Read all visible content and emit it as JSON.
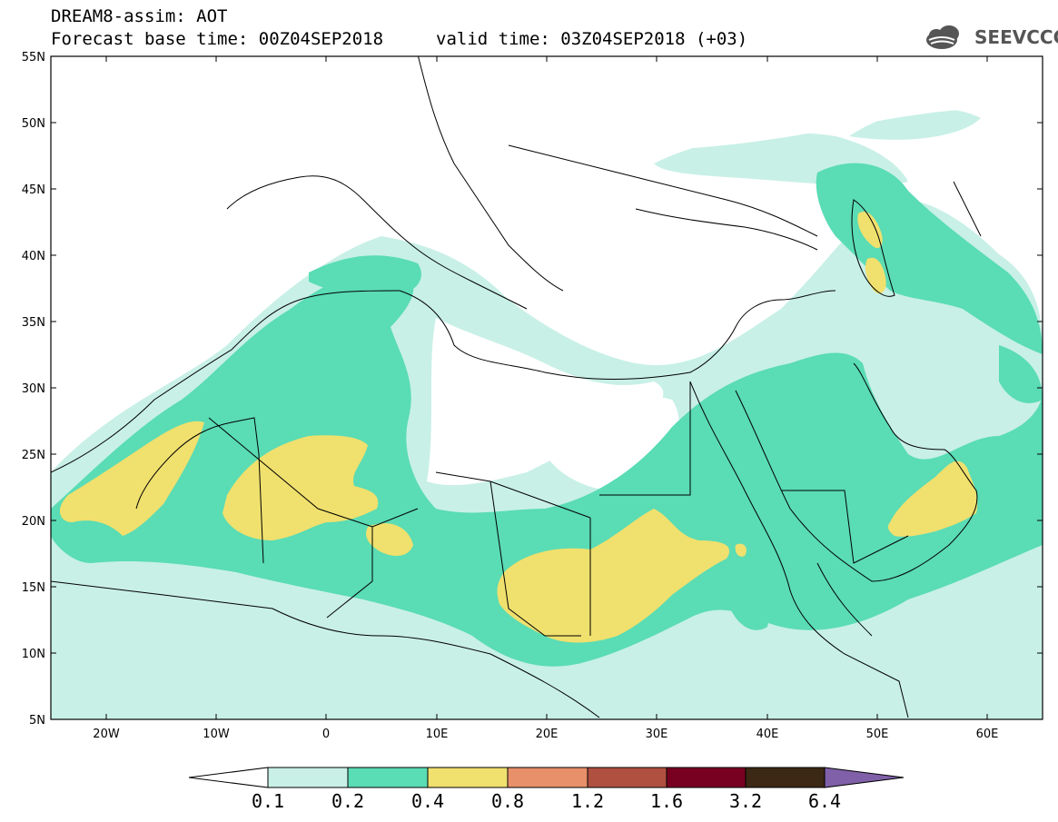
{
  "header": {
    "title": "DREAM8-assim: AOT",
    "base_time": "Forecast base time: 00Z04SEP2018",
    "valid_time": "valid time: 03Z04SEP2018 (+03)",
    "logo_text": "SEEVCCC"
  },
  "map": {
    "lon_range": [
      -25,
      65
    ],
    "lat_range": [
      5,
      55
    ],
    "lat_labels": [
      "5N",
      "10N",
      "15N",
      "20N",
      "25N",
      "30N",
      "35N",
      "40N",
      "45N",
      "50N",
      "55N"
    ],
    "lon_labels": [
      "20W",
      "10W",
      "0",
      "10E",
      "20E",
      "30E",
      "40E",
      "50E",
      "60E"
    ],
    "contour_colors": {
      "c01": "#c8f0e6",
      "c02": "#5adcb4",
      "c04": "#f0e06e"
    }
  },
  "colorbar": {
    "labels": [
      "0.1",
      "0.2",
      "0.4",
      "0.8",
      "1.2",
      "1.6",
      "3.2",
      "6.4"
    ],
    "colors": [
      "#ffffff",
      "#c8f0e6",
      "#5adcb4",
      "#f0e06e",
      "#e8906a",
      "#b05040",
      "#780020",
      "#3c2814",
      "#8060a8"
    ]
  }
}
